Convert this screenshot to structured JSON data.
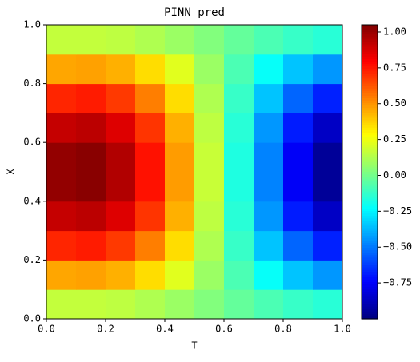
{
  "chart_data": {
    "type": "heatmap",
    "title": "PINN pred",
    "xlabel": "T",
    "ylabel": "X",
    "x": [
      0.05,
      0.15,
      0.25,
      0.35,
      0.45,
      0.55,
      0.65,
      0.75,
      0.85,
      0.95
    ],
    "y": [
      0.05,
      0.15,
      0.25,
      0.35,
      0.45,
      0.55,
      0.65,
      0.75,
      0.85,
      0.95
    ],
    "z": [
      [
        0.16,
        0.16,
        0.15,
        0.12,
        0.08,
        0.03,
        -0.03,
        -0.08,
        -0.12,
        -0.15
      ],
      [
        0.46,
        0.47,
        0.44,
        0.35,
        0.22,
        0.08,
        -0.08,
        -0.22,
        -0.35,
        -0.44
      ],
      [
        0.72,
        0.74,
        0.68,
        0.54,
        0.35,
        0.12,
        -0.12,
        -0.35,
        -0.54,
        -0.68
      ],
      [
        0.91,
        0.93,
        0.86,
        0.69,
        0.44,
        0.15,
        -0.15,
        -0.44,
        -0.69,
        -0.86
      ],
      [
        1.01,
        1.03,
        0.95,
        0.76,
        0.48,
        0.17,
        -0.17,
        -0.48,
        -0.76,
        -0.95
      ],
      [
        1.01,
        1.03,
        0.95,
        0.76,
        0.48,
        0.17,
        -0.17,
        -0.48,
        -0.76,
        -0.95
      ],
      [
        0.91,
        0.93,
        0.86,
        0.69,
        0.44,
        0.15,
        -0.15,
        -0.44,
        -0.69,
        -0.86
      ],
      [
        0.72,
        0.74,
        0.68,
        0.54,
        0.35,
        0.12,
        -0.12,
        -0.35,
        -0.54,
        -0.68
      ],
      [
        0.46,
        0.47,
        0.44,
        0.35,
        0.22,
        0.08,
        -0.08,
        -0.22,
        -0.35,
        -0.44
      ],
      [
        0.16,
        0.16,
        0.15,
        0.12,
        0.08,
        0.03,
        -0.03,
        -0.08,
        -0.12,
        -0.15
      ]
    ],
    "xlim": [
      0,
      1
    ],
    "ylim": [
      0,
      1
    ],
    "xticks": [
      {
        "value": 0,
        "label": "0.0"
      },
      {
        "value": 0.2,
        "label": "0.2"
      },
      {
        "value": 0.4,
        "label": "0.4"
      },
      {
        "value": 0.6,
        "label": "0.6"
      },
      {
        "value": 0.8,
        "label": "0.8"
      },
      {
        "value": 1,
        "label": "1.0"
      }
    ],
    "yticks": [
      {
        "value": 0,
        "label": "0.0"
      },
      {
        "value": 0.2,
        "label": "0.2"
      },
      {
        "value": 0.4,
        "label": "0.4"
      },
      {
        "value": 0.6,
        "label": "0.6"
      },
      {
        "value": 0.8,
        "label": "0.8"
      },
      {
        "value": 1,
        "label": "1.0"
      }
    ],
    "colormap": "jet",
    "clim": [
      -1.0,
      1.05
    ],
    "cticks": [
      {
        "value": -0.75,
        "label": "−0.75"
      },
      {
        "value": -0.5,
        "label": "−0.50"
      },
      {
        "value": -0.25,
        "label": "−0.25"
      },
      {
        "value": 0,
        "label": "0.00"
      },
      {
        "value": 0.25,
        "label": "0.25"
      },
      {
        "value": 0.5,
        "label": "0.50"
      },
      {
        "value": 0.75,
        "label": "0.75"
      },
      {
        "value": 1,
        "label": "1.00"
      }
    ]
  }
}
